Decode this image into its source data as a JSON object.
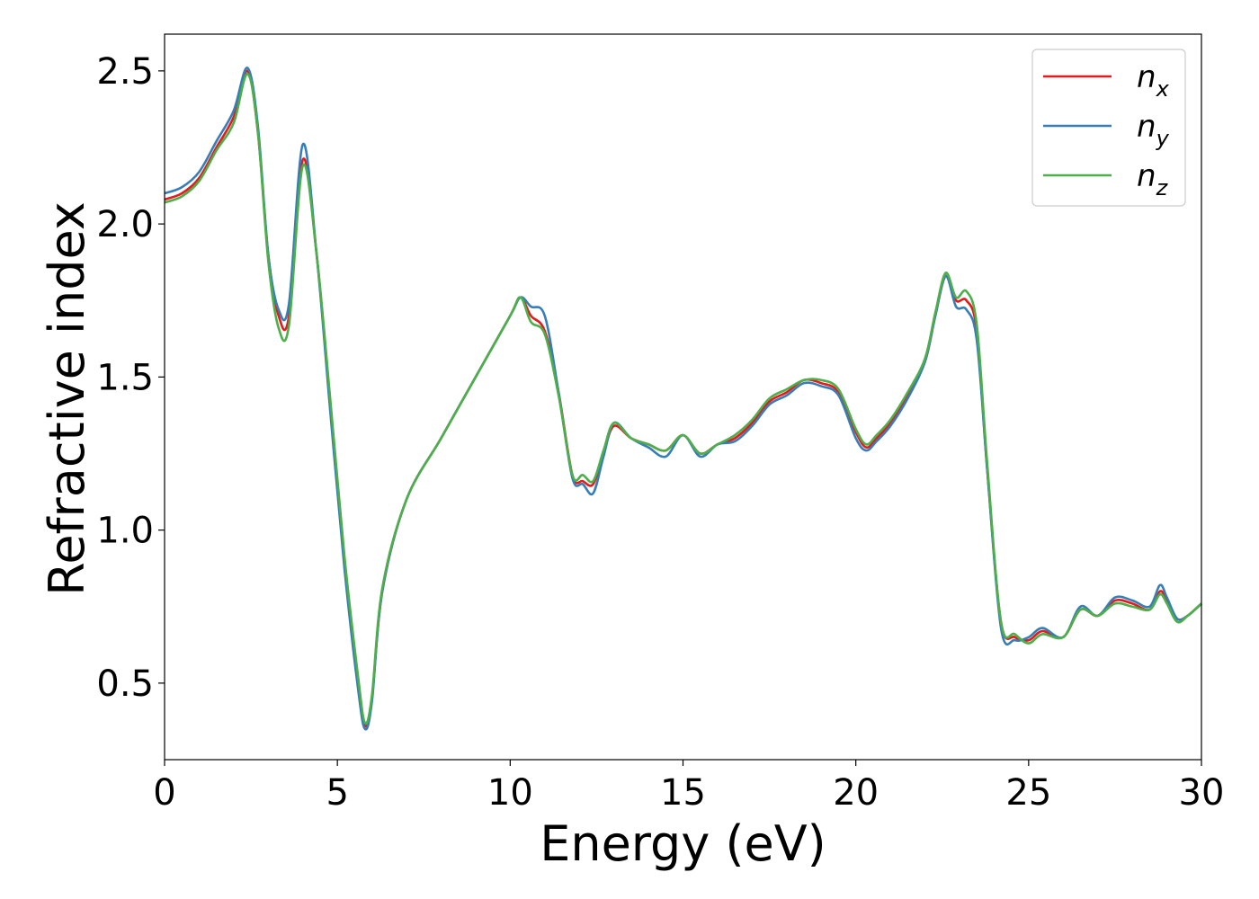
{
  "chart_data": {
    "type": "line",
    "xlabel": "Energy (eV)",
    "ylabel": "Refractive index",
    "xlim": [
      0,
      30
    ],
    "ylim": [
      0.25,
      2.62
    ],
    "xticks": [
      0,
      5,
      10,
      15,
      20,
      25,
      30
    ],
    "yticks": [
      0.5,
      1.0,
      1.5,
      2.0,
      2.5
    ],
    "xtick_labels": [
      "0",
      "5",
      "10",
      "15",
      "20",
      "25",
      "30"
    ],
    "ytick_labels": [
      "0.5",
      "1.0",
      "1.5",
      "2.0",
      "2.5"
    ],
    "grid": false,
    "legend_position": "top-right",
    "series": [
      {
        "name": "n_x",
        "label_base": "n",
        "label_sub": "x",
        "color": "#e41a1c",
        "x": [
          0,
          0.5,
          1.0,
          1.5,
          2.0,
          2.4,
          2.7,
          3.0,
          3.3,
          3.6,
          4.0,
          4.4,
          4.8,
          5.2,
          5.6,
          5.8,
          6.0,
          6.3,
          7.0,
          8.0,
          9.0,
          10.0,
          10.3,
          10.6,
          11.0,
          11.4,
          11.8,
          12.1,
          12.4,
          12.7,
          13.0,
          13.5,
          14.0,
          14.5,
          15.0,
          15.5,
          16.0,
          16.5,
          17.0,
          17.5,
          18.0,
          18.5,
          19.0,
          19.5,
          20.0,
          20.3,
          20.6,
          21.0,
          21.5,
          22.0,
          22.3,
          22.6,
          22.9,
          23.2,
          23.5,
          23.8,
          24.2,
          24.6,
          25.0,
          25.4,
          26.0,
          26.5,
          27.0,
          27.5,
          28.0,
          28.5,
          28.8,
          29.0,
          29.3,
          29.6,
          30.0
        ],
        "y": [
          2.08,
          2.1,
          2.15,
          2.25,
          2.35,
          2.5,
          2.3,
          1.9,
          1.7,
          1.7,
          2.21,
          1.9,
          1.4,
          0.9,
          0.5,
          0.36,
          0.45,
          0.8,
          1.1,
          1.3,
          1.5,
          1.7,
          1.76,
          1.7,
          1.65,
          1.45,
          1.18,
          1.16,
          1.15,
          1.25,
          1.34,
          1.3,
          1.28,
          1.26,
          1.31,
          1.25,
          1.28,
          1.3,
          1.35,
          1.42,
          1.45,
          1.49,
          1.48,
          1.45,
          1.32,
          1.27,
          1.3,
          1.35,
          1.44,
          1.55,
          1.7,
          1.83,
          1.75,
          1.75,
          1.65,
          1.2,
          0.7,
          0.65,
          0.64,
          0.67,
          0.65,
          0.74,
          0.72,
          0.77,
          0.76,
          0.74,
          0.8,
          0.77,
          0.71,
          0.72,
          0.76
        ]
      },
      {
        "name": "n_y",
        "label_base": "n",
        "label_sub": "y",
        "color": "#377eb8",
        "x": [
          0,
          0.5,
          1.0,
          1.5,
          2.0,
          2.4,
          2.7,
          3.0,
          3.3,
          3.6,
          4.0,
          4.4,
          4.8,
          5.2,
          5.6,
          5.8,
          6.0,
          6.3,
          7.0,
          8.0,
          9.0,
          10.0,
          10.3,
          10.6,
          11.0,
          11.4,
          11.8,
          12.1,
          12.4,
          12.7,
          13.0,
          13.5,
          14.0,
          14.5,
          15.0,
          15.5,
          16.0,
          16.5,
          17.0,
          17.5,
          18.0,
          18.5,
          19.0,
          19.5,
          20.0,
          20.3,
          20.6,
          21.0,
          21.5,
          22.0,
          22.3,
          22.6,
          22.9,
          23.2,
          23.5,
          23.8,
          24.2,
          24.6,
          25.0,
          25.4,
          26.0,
          26.5,
          27.0,
          27.5,
          28.0,
          28.5,
          28.8,
          29.0,
          29.3,
          29.6,
          30.0
        ],
        "y": [
          2.1,
          2.12,
          2.17,
          2.27,
          2.37,
          2.51,
          2.32,
          1.9,
          1.72,
          1.74,
          2.26,
          1.9,
          1.38,
          0.88,
          0.48,
          0.35,
          0.44,
          0.8,
          1.1,
          1.3,
          1.5,
          1.7,
          1.76,
          1.73,
          1.7,
          1.45,
          1.17,
          1.15,
          1.12,
          1.24,
          1.35,
          1.3,
          1.27,
          1.24,
          1.31,
          1.24,
          1.28,
          1.29,
          1.34,
          1.41,
          1.44,
          1.48,
          1.47,
          1.44,
          1.3,
          1.26,
          1.29,
          1.34,
          1.43,
          1.55,
          1.7,
          1.83,
          1.73,
          1.72,
          1.62,
          1.2,
          0.68,
          0.64,
          0.65,
          0.68,
          0.65,
          0.75,
          0.72,
          0.78,
          0.77,
          0.75,
          0.82,
          0.78,
          0.71,
          0.72,
          0.76
        ]
      },
      {
        "name": "n_z",
        "label_base": "n",
        "label_sub": "z",
        "color": "#4daf4a",
        "x": [
          0,
          0.5,
          1.0,
          1.5,
          2.0,
          2.4,
          2.7,
          3.0,
          3.3,
          3.6,
          4.0,
          4.4,
          4.8,
          5.2,
          5.6,
          5.8,
          6.0,
          6.3,
          7.0,
          8.0,
          9.0,
          10.0,
          10.3,
          10.6,
          11.0,
          11.4,
          11.8,
          12.1,
          12.4,
          12.7,
          13.0,
          13.5,
          14.0,
          14.5,
          15.0,
          15.5,
          16.0,
          16.5,
          17.0,
          17.5,
          18.0,
          18.5,
          19.0,
          19.5,
          20.0,
          20.3,
          20.6,
          21.0,
          21.5,
          22.0,
          22.3,
          22.6,
          22.9,
          23.2,
          23.5,
          23.8,
          24.2,
          24.6,
          25.0,
          25.4,
          26.0,
          26.5,
          27.0,
          27.5,
          28.0,
          28.5,
          28.8,
          29.0,
          29.3,
          29.6,
          30.0
        ],
        "y": [
          2.07,
          2.09,
          2.14,
          2.24,
          2.33,
          2.49,
          2.3,
          1.88,
          1.66,
          1.67,
          2.19,
          1.9,
          1.42,
          0.92,
          0.52,
          0.37,
          0.46,
          0.81,
          1.1,
          1.3,
          1.5,
          1.7,
          1.76,
          1.68,
          1.64,
          1.44,
          1.18,
          1.18,
          1.16,
          1.26,
          1.35,
          1.3,
          1.28,
          1.26,
          1.31,
          1.25,
          1.28,
          1.31,
          1.36,
          1.43,
          1.46,
          1.49,
          1.49,
          1.46,
          1.33,
          1.28,
          1.31,
          1.36,
          1.45,
          1.56,
          1.71,
          1.84,
          1.76,
          1.78,
          1.67,
          1.22,
          0.7,
          0.66,
          0.63,
          0.66,
          0.65,
          0.74,
          0.72,
          0.76,
          0.75,
          0.74,
          0.79,
          0.76,
          0.7,
          0.72,
          0.76
        ]
      }
    ]
  }
}
